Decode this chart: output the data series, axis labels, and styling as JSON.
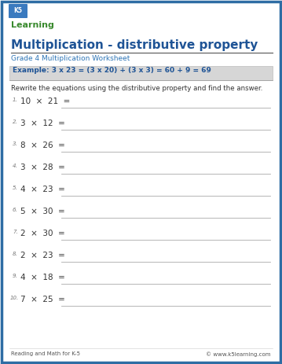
{
  "title": "Multiplication - distributive property",
  "subtitle": "Grade 4 Multiplication Worksheet",
  "example_text": "Example: 3 x 23 = (3 x 20) + (3 x 3) = 60 + 9 = 69",
  "instruction": "Rewrite the equations using the distributive property and find the answer.",
  "problems": [
    [
      "10",
      "21"
    ],
    [
      "3",
      "12"
    ],
    [
      "8",
      "26"
    ],
    [
      "3",
      "28"
    ],
    [
      "4",
      "23"
    ],
    [
      "5",
      "30"
    ],
    [
      "2",
      "30"
    ],
    [
      "2",
      "23"
    ],
    [
      "4",
      "18"
    ],
    [
      "7",
      "25"
    ]
  ],
  "footer_left": "Reading and Math for K-5",
  "footer_right": "© www.k5learning.com",
  "border_color": "#2e6da4",
  "title_color": "#1f5496",
  "subtitle_color": "#2e75b6",
  "example_bg": "#d6d6d6",
  "example_text_color": "#1f5496",
  "body_bg": "#ffffff",
  "line_color": "#aaaaaa",
  "problem_number_color": "#777777",
  "problem_text_color": "#333333",
  "footer_color": "#555555",
  "outer_border_color": "#2e6da4"
}
